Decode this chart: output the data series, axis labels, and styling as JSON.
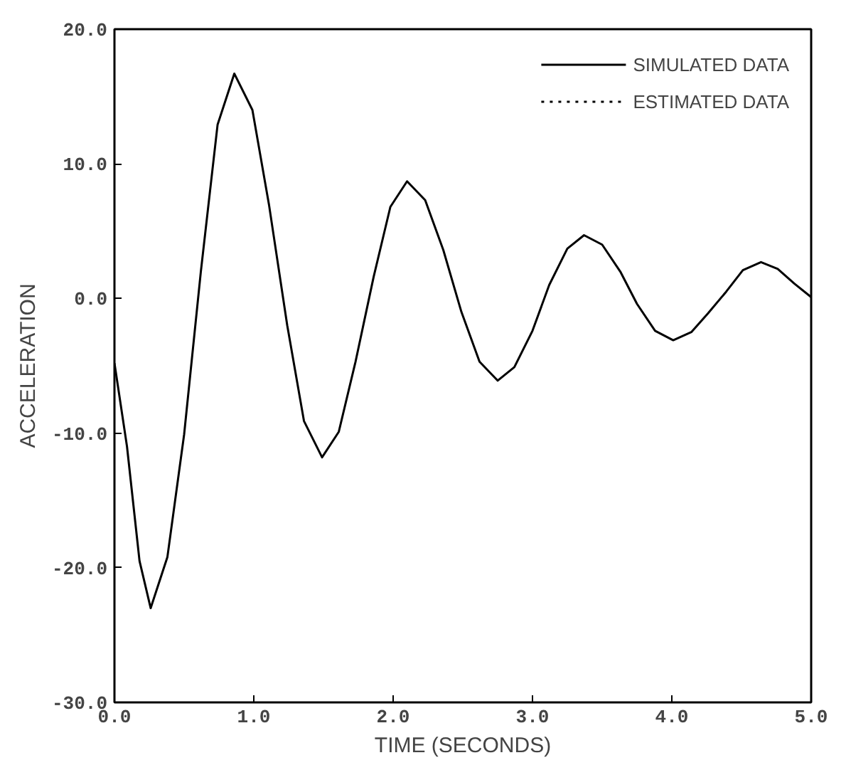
{
  "chart_data": {
    "type": "line",
    "xlabel": "TIME (SECONDS)",
    "ylabel": "ACCELERATION",
    "xlim": [
      0,
      5
    ],
    "ylim": [
      -30,
      20
    ],
    "xticks": [
      {
        "value": 0,
        "label": "0.0"
      },
      {
        "value": 1,
        "label": "1.0"
      },
      {
        "value": 2,
        "label": "2.0"
      },
      {
        "value": 3,
        "label": "3.0"
      },
      {
        "value": 4,
        "label": "4.0"
      },
      {
        "value": 5,
        "label": "5.0"
      }
    ],
    "yticks": [
      {
        "value": -30,
        "label": "-30.0"
      },
      {
        "value": -20,
        "label": "-20.0"
      },
      {
        "value": -10,
        "label": "-10.0"
      },
      {
        "value": 0,
        "label": "0.0"
      },
      {
        "value": 10,
        "label": "10.0"
      },
      {
        "value": 20,
        "label": "20.0"
      }
    ],
    "x": [
      0,
      0.09,
      0.18,
      0.26,
      0.38,
      0.5,
      0.62,
      0.74,
      0.86,
      0.99,
      1.11,
      1.24,
      1.36,
      1.49,
      1.61,
      1.73,
      1.86,
      1.98,
      2.1,
      2.23,
      2.36,
      2.49,
      2.62,
      2.75,
      2.87,
      3.0,
      3.12,
      3.25,
      3.37,
      3.5,
      3.63,
      3.75,
      3.88,
      4.01,
      4.14,
      4.26,
      4.39,
      4.51,
      4.64,
      4.76,
      4.88,
      5.0
    ],
    "series": [
      {
        "name": "SIMULATED DATA",
        "color": "#000000",
        "line_style": "solid",
        "values": [
          -4.8,
          -11,
          -19.5,
          -23,
          -19.2,
          -10.1,
          2.0,
          12.9,
          16.7,
          14.0,
          6.9,
          -2.0,
          -9.1,
          -11.8,
          -9.9,
          -4.7,
          1.6,
          6.8,
          8.7,
          7.3,
          3.6,
          -1.0,
          -4.7,
          -6.1,
          -5.1,
          -2.4,
          1.0,
          3.7,
          4.7,
          4.0,
          2.0,
          -0.4,
          -2.4,
          -3.1,
          -2.5,
          -1.1,
          0.5,
          2.1,
          2.7,
          2.2,
          1.1,
          0.1
        ]
      },
      {
        "name": "ESTIMATED DATA",
        "color": "#000000",
        "line_style": "dotted",
        "values": [
          null,
          null,
          null,
          null,
          null,
          null,
          null,
          null,
          null,
          null,
          null,
          null,
          null,
          null,
          null,
          null,
          null,
          null,
          null,
          null,
          null,
          null,
          null,
          null,
          null,
          null,
          null,
          null,
          null,
          null,
          null,
          null,
          null,
          null,
          null,
          null,
          null,
          null,
          null,
          null,
          null,
          null
        ]
      }
    ],
    "grid": false,
    "legend": "top right",
    "marker": "none"
  }
}
